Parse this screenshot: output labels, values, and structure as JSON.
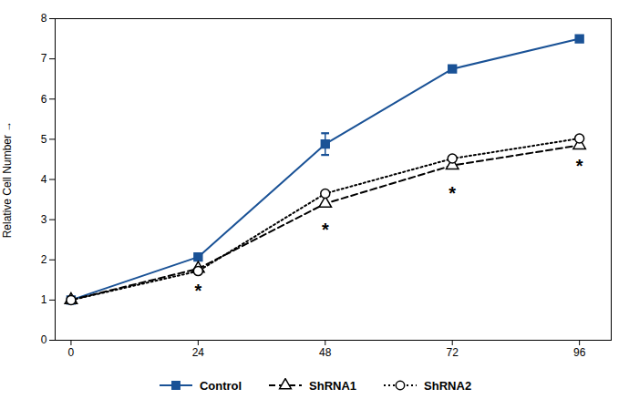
{
  "chart_data": {
    "type": "line",
    "ylabel": "Relative Cell Number",
    "x": [
      0,
      24,
      48,
      72,
      96
    ],
    "series": [
      {
        "name": "Control",
        "color": "#1a5296",
        "marker": "square",
        "line_style": "solid",
        "values": [
          1.0,
          2.07,
          4.88,
          6.75,
          7.5
        ],
        "yerr": [
          0.0,
          0.0,
          0.27,
          0.0,
          0.0
        ]
      },
      {
        "name": "ShRNA1",
        "color": "#000000",
        "marker": "triangle-open",
        "line_style": "dashed",
        "values": [
          1.0,
          1.78,
          3.4,
          4.35,
          4.85
        ]
      },
      {
        "name": "ShRNA2",
        "color": "#000000",
        "marker": "circle-open",
        "line_style": "dotted",
        "values": [
          1.0,
          1.72,
          3.65,
          4.52,
          5.02
        ]
      }
    ],
    "annotations": [
      {
        "x": 24,
        "y": 1.22,
        "text": "*"
      },
      {
        "x": 48,
        "y": 2.73,
        "text": "*"
      },
      {
        "x": 72,
        "y": 3.65,
        "text": "*"
      },
      {
        "x": 96,
        "y": 4.32,
        "text": "*"
      }
    ],
    "xlim": [
      -3,
      102
    ],
    "xticks": [
      0,
      24,
      48,
      72,
      96
    ],
    "ylim": [
      0,
      8
    ],
    "yticks": [
      0,
      1,
      2,
      3,
      4,
      5,
      6,
      7,
      8
    ],
    "grid": false,
    "legend": "bottom"
  }
}
